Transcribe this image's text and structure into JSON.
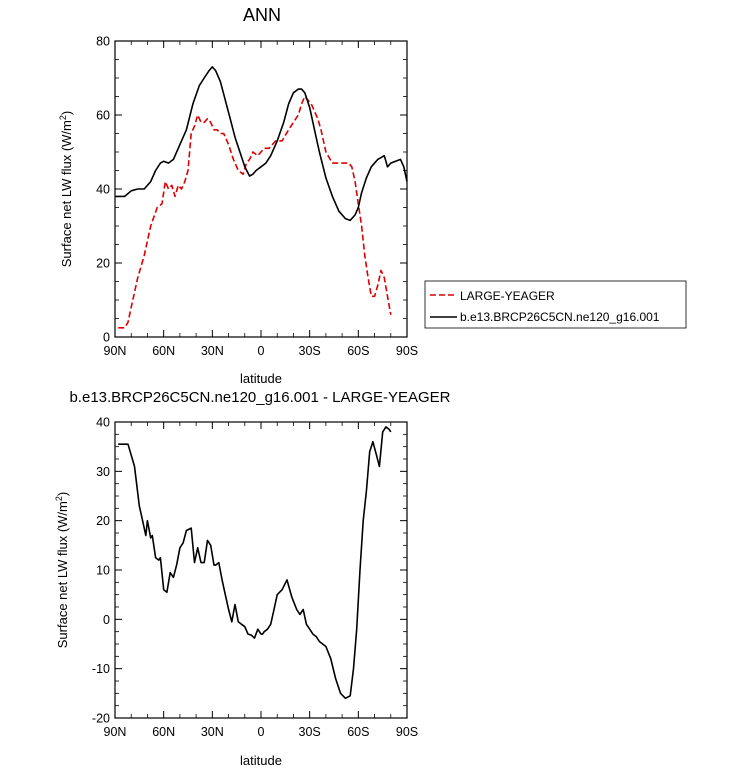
{
  "chart_data": [
    {
      "type": "line",
      "title": "ANN",
      "xlabel": "latitude",
      "ylabel_prefix": "Surface net LW flux (W/m",
      "ylabel_sup": "2",
      "ylabel_suffix": ")",
      "xlim": [
        90,
        -90
      ],
      "ylim": [
        0,
        80
      ],
      "x_ticks": [
        90,
        60,
        30,
        0,
        -30,
        -60,
        -90
      ],
      "x_tick_labels": [
        "90N",
        "60N",
        "30N",
        "0",
        "30S",
        "60S",
        "90S"
      ],
      "y_ticks": [
        0,
        20,
        40,
        60,
        80
      ],
      "y_tick_labels": [
        "0",
        "20",
        "40",
        "60",
        "80"
      ],
      "legend_position": "right",
      "series": [
        {
          "name": "LARGE-YEAGER",
          "color": "#dd0000",
          "dash": "dashed",
          "x": [
            88,
            84,
            82,
            80,
            76,
            72,
            68,
            64,
            61,
            59,
            57,
            55,
            53,
            51,
            49,
            47,
            45,
            43,
            41,
            39,
            37,
            35,
            33,
            31,
            29,
            27,
            25,
            23,
            20,
            17,
            14,
            11,
            9,
            7,
            5,
            2,
            -2,
            -5,
            -9,
            -13,
            -17,
            -20,
            -23,
            -25,
            -27,
            -29,
            -31,
            -33,
            -35,
            -37,
            -40,
            -44,
            -48,
            -52,
            -54,
            -56,
            -58,
            -60,
            -62,
            -64,
            -66,
            -68,
            -70,
            -72,
            -74,
            -76,
            -78,
            -80
          ],
          "y": [
            2.5,
            2.5,
            4,
            8,
            16,
            22,
            30,
            35,
            36,
            42,
            40,
            41,
            38,
            41,
            40,
            42,
            45,
            55,
            57,
            60,
            58,
            58,
            59,
            58,
            56,
            56,
            55,
            55,
            52,
            48,
            45,
            44,
            47,
            48,
            50,
            49,
            51,
            51,
            53,
            53,
            56,
            58,
            60,
            63,
            65,
            64,
            63,
            61,
            59,
            56,
            50,
            47,
            47,
            47,
            47,
            46,
            42,
            36,
            30,
            22,
            16,
            11,
            11,
            14,
            18,
            16,
            11,
            6
          ]
        },
        {
          "name": "b.e13.BRCP26C5CN.ne120_g16.001",
          "color": "#000000",
          "dash": "solid",
          "x": [
            90,
            86,
            84,
            80,
            76,
            72,
            68,
            65,
            62,
            60,
            57,
            54,
            50,
            46,
            42,
            38,
            35,
            32,
            30,
            28,
            25,
            22,
            19,
            16,
            13,
            10,
            7,
            5,
            3,
            0,
            -3,
            -6,
            -10,
            -14,
            -17,
            -20,
            -23,
            -25,
            -27,
            -30,
            -33,
            -36,
            -40,
            -44,
            -48,
            -52,
            -55,
            -58,
            -60,
            -62,
            -65,
            -68,
            -72,
            -76,
            -78,
            -80,
            -83,
            -86,
            -88,
            -90
          ],
          "y": [
            38,
            38,
            38,
            39.5,
            40,
            40,
            42,
            45,
            47,
            47.5,
            47,
            48,
            52,
            56,
            63,
            68,
            70,
            72,
            73,
            72,
            69,
            64,
            59,
            54,
            50,
            46,
            43.5,
            44,
            45,
            46,
            47,
            49,
            53,
            58,
            63,
            66,
            67,
            67,
            66,
            62,
            56,
            50,
            43,
            38,
            34,
            32,
            31.5,
            33,
            35,
            39,
            43,
            46,
            48,
            49,
            46,
            47,
            47.5,
            48,
            46,
            42
          ]
        }
      ]
    },
    {
      "type": "line",
      "title": "b.e13.BRCP26C5CN.ne120_g16.001 - LARGE-YEAGER",
      "xlabel": "latitude",
      "ylabel_prefix": "Surface net LW flux (W/m",
      "ylabel_sup": "2",
      "ylabel_suffix": ")",
      "xlim": [
        90,
        -90
      ],
      "ylim": [
        -20,
        40
      ],
      "x_ticks": [
        90,
        60,
        30,
        0,
        -30,
        -60,
        -90
      ],
      "x_tick_labels": [
        "90N",
        "60N",
        "30N",
        "0",
        "30S",
        "60S",
        "90S"
      ],
      "y_ticks": [
        -20,
        -10,
        0,
        10,
        20,
        30,
        40
      ],
      "y_tick_labels": [
        "-20",
        "-10",
        "0",
        "10",
        "20",
        "30",
        "40"
      ],
      "series": [
        {
          "color": "#000000",
          "dash": "solid",
          "x": [
            88,
            84,
            82,
            78,
            75,
            73,
            71,
            70,
            68,
            67,
            65,
            63,
            62,
            60,
            58,
            56,
            54,
            52,
            50,
            48,
            46,
            43,
            41,
            39,
            37,
            35,
            33,
            31,
            29,
            28,
            26,
            24,
            22,
            20,
            18,
            16,
            14,
            12,
            10,
            8,
            6,
            4,
            2,
            0,
            -1,
            -2,
            -4,
            -6,
            -8,
            -10,
            -13,
            -16,
            -19,
            -22,
            -24,
            -26,
            -28,
            -30,
            -32,
            -34,
            -36,
            -38,
            -40,
            -43,
            -46,
            -49,
            -52,
            -55,
            -57,
            -59,
            -61,
            -63,
            -65,
            -67,
            -69,
            -71,
            -73,
            -75,
            -77,
            -79,
            -80
          ],
          "y": [
            35.5,
            35.5,
            35.5,
            31,
            23,
            20,
            17,
            20,
            16.5,
            17,
            12.5,
            12,
            12.5,
            6,
            5.5,
            9.5,
            8.5,
            11,
            14.5,
            15.5,
            18,
            18.5,
            11.5,
            14.5,
            11.5,
            11.5,
            16,
            15,
            11,
            11,
            11.5,
            8,
            5,
            2,
            -0.5,
            3,
            -0.5,
            -1,
            -1.5,
            -3,
            -3.2,
            -3.8,
            -2,
            -3,
            -3,
            -2.5,
            -2,
            -1,
            2,
            5,
            6,
            8,
            4.5,
            2,
            1,
            2,
            -1,
            -2,
            -3,
            -3.5,
            -4.5,
            -5,
            -5.5,
            -8,
            -12,
            -15,
            -16,
            -15.5,
            -10,
            -2,
            10,
            20,
            26,
            34,
            36,
            33.5,
            31,
            38,
            39,
            38.5,
            38
          ]
        }
      ]
    }
  ]
}
